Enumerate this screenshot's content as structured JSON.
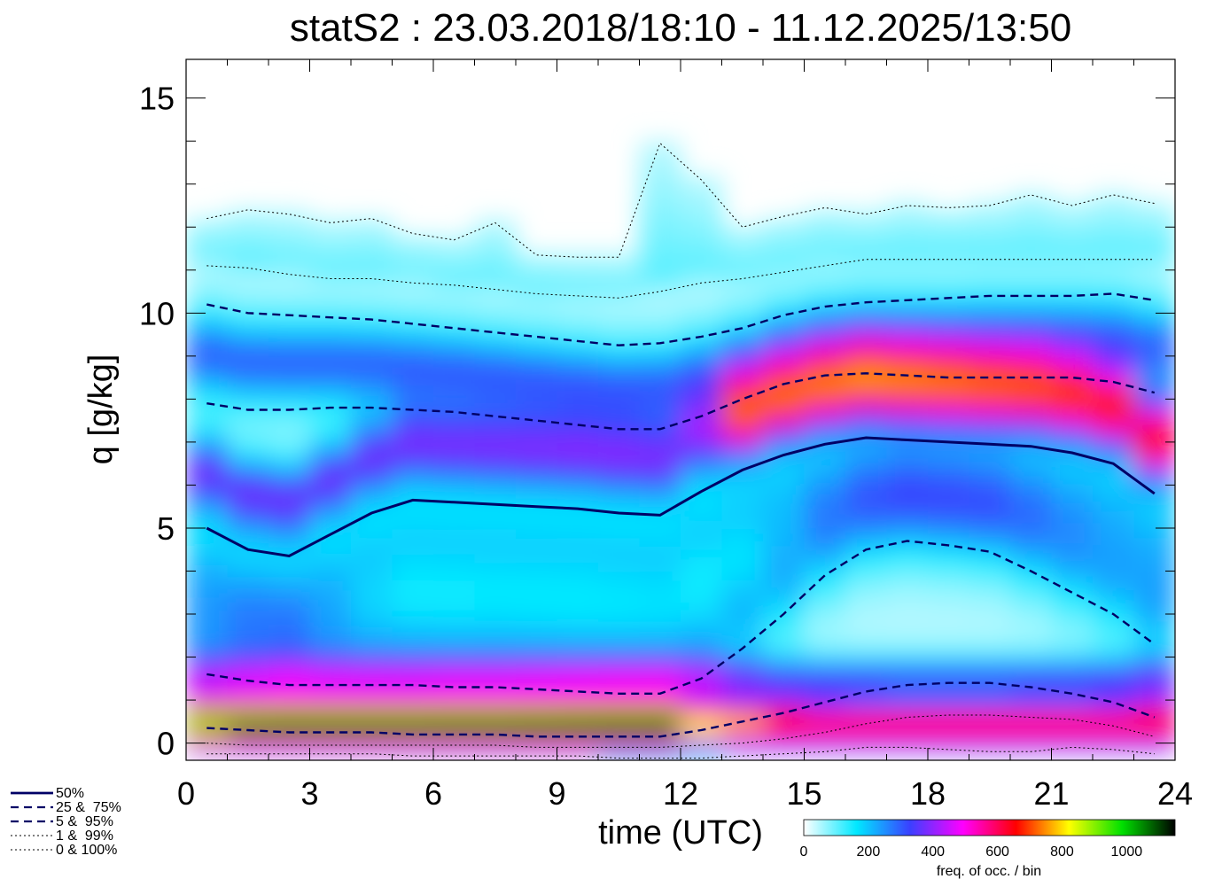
{
  "chart_data": {
    "type": "heatmap",
    "title": "statS2 : 23.03.2018/18:10 - 11.12.2025/13:50",
    "xlabel": "time (UTC)",
    "ylabel": "q [g/kg]",
    "xlim": [
      0,
      24
    ],
    "ylim": [
      -0.4,
      15.9
    ],
    "xticks": [
      "0",
      "3",
      "6",
      "9",
      "12",
      "15",
      "18",
      "21",
      "24"
    ],
    "yticks": [
      "0",
      "5",
      "10",
      "15"
    ],
    "x": [
      0.5,
      1.5,
      2.5,
      3.5,
      4.5,
      5.5,
      6.5,
      7.5,
      8.5,
      9.5,
      10.5,
      11.5,
      12.5,
      13.5,
      14.5,
      15.5,
      16.5,
      17.5,
      18.5,
      19.5,
      20.5,
      21.5,
      22.5,
      23.5
    ],
    "series": [
      {
        "name": "50%",
        "style": "solid-thick",
        "values": [
          5.0,
          4.5,
          4.35,
          4.85,
          5.35,
          5.65,
          5.6,
          5.55,
          5.5,
          5.45,
          5.35,
          5.3,
          5.85,
          6.35,
          6.7,
          6.95,
          7.1,
          7.05,
          7.0,
          6.95,
          6.9,
          6.75,
          6.5,
          5.8
        ]
      },
      {
        "name": "25%",
        "style": "dash",
        "values": [
          1.6,
          1.45,
          1.35,
          1.35,
          1.35,
          1.35,
          1.3,
          1.3,
          1.25,
          1.2,
          1.15,
          1.15,
          1.5,
          2.2,
          3.0,
          3.9,
          4.5,
          4.7,
          4.6,
          4.45,
          4.0,
          3.5,
          3.0,
          2.3
        ]
      },
      {
        "name": "75%",
        "style": "dash",
        "values": [
          7.9,
          7.75,
          7.75,
          7.8,
          7.8,
          7.75,
          7.7,
          7.6,
          7.5,
          7.4,
          7.3,
          7.3,
          7.6,
          8.0,
          8.35,
          8.55,
          8.6,
          8.55,
          8.5,
          8.5,
          8.5,
          8.5,
          8.4,
          8.15
        ]
      },
      {
        "name": "5%",
        "style": "dash",
        "values": [
          0.35,
          0.3,
          0.25,
          0.25,
          0.25,
          0.2,
          0.2,
          0.2,
          0.15,
          0.15,
          0.15,
          0.15,
          0.3,
          0.5,
          0.7,
          0.95,
          1.2,
          1.35,
          1.4,
          1.4,
          1.3,
          1.15,
          0.95,
          0.6
        ]
      },
      {
        "name": "95%",
        "style": "dash",
        "values": [
          10.2,
          10.0,
          9.95,
          9.9,
          9.85,
          9.75,
          9.65,
          9.55,
          9.45,
          9.35,
          9.25,
          9.3,
          9.45,
          9.65,
          9.95,
          10.15,
          10.25,
          10.3,
          10.35,
          10.4,
          10.4,
          10.4,
          10.45,
          10.3
        ]
      },
      {
        "name": "1%",
        "style": "dot",
        "values": [
          0.0,
          -0.05,
          -0.05,
          -0.05,
          -0.05,
          -0.05,
          -0.05,
          -0.05,
          -0.1,
          -0.1,
          -0.1,
          -0.1,
          -0.05,
          0.0,
          0.1,
          0.25,
          0.45,
          0.6,
          0.65,
          0.65,
          0.6,
          0.55,
          0.4,
          0.15
        ]
      },
      {
        "name": "99%",
        "style": "dot",
        "values": [
          11.1,
          11.05,
          10.9,
          10.8,
          10.8,
          10.7,
          10.65,
          10.55,
          10.45,
          10.4,
          10.35,
          10.5,
          10.7,
          10.8,
          10.95,
          11.1,
          11.25,
          11.25,
          11.25,
          11.25,
          11.25,
          11.25,
          11.25,
          11.25
        ]
      },
      {
        "name": "0%",
        "style": "dot",
        "values": [
          -0.25,
          -0.25,
          -0.25,
          -0.25,
          -0.25,
          -0.3,
          -0.3,
          -0.3,
          -0.3,
          -0.3,
          -0.35,
          -0.35,
          -0.35,
          -0.3,
          -0.25,
          -0.2,
          -0.1,
          -0.1,
          -0.15,
          -0.2,
          -0.2,
          -0.1,
          -0.15,
          -0.25
        ]
      },
      {
        "name": "100%",
        "style": "dot",
        "values": [
          12.2,
          12.4,
          12.3,
          12.1,
          12.2,
          11.85,
          11.7,
          12.1,
          11.35,
          11.3,
          11.3,
          13.95,
          13.1,
          12.0,
          12.25,
          12.45,
          12.3,
          12.5,
          12.45,
          12.5,
          12.75,
          12.5,
          12.75,
          12.55
        ]
      }
    ],
    "legend": {
      "placement": "bottom-left",
      "entries": [
        "50%",
        "25 &  75%",
        "5 &  95%",
        "1 &  99%",
        "0 & 100%"
      ]
    },
    "colorbar": {
      "placement": "bottom-right",
      "label": "freq. of occ. / bin",
      "ticks": [
        "0",
        "200",
        "400",
        "600",
        "800",
        "1000"
      ],
      "range": [
        0,
        1150
      ],
      "stops": [
        "#ffffff",
        "#00e8ff",
        "#3a40ff",
        "#ff00ff",
        "#ff0000",
        "#ffff00",
        "#00e000",
        "#000000"
      ]
    }
  }
}
